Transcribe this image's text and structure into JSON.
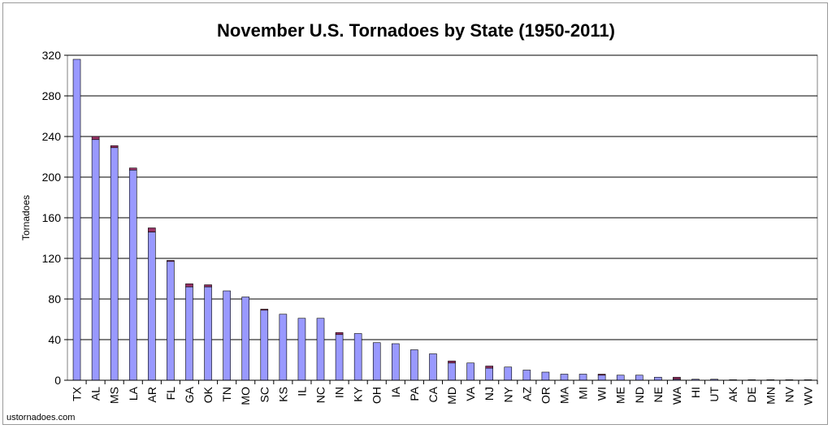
{
  "chart_data": {
    "type": "bar",
    "title": "November U.S. Tornadoes by State (1950-2011)",
    "xlabel": "",
    "ylabel": "Tornadoes",
    "ylim": [
      0,
      320
    ],
    "yticks": [
      0,
      40,
      80,
      120,
      160,
      200,
      240,
      280,
      320
    ],
    "grid": true,
    "legend": "none",
    "stacked": true,
    "categories": [
      "TX",
      "AL",
      "MS",
      "LA",
      "AR",
      "FL",
      "GA",
      "OK",
      "TN",
      "MO",
      "SC",
      "KS",
      "IL",
      "NC",
      "IN",
      "KY",
      "OH",
      "IA",
      "PA",
      "CA",
      "MD",
      "VA",
      "NJ",
      "NY",
      "AZ",
      "OR",
      "MA",
      "MI",
      "WI",
      "ME",
      "ND",
      "NE",
      "WA",
      "HI",
      "UT",
      "AK",
      "DE",
      "MN",
      "NV",
      "WV"
    ],
    "series": [
      {
        "color": "#9999ff",
        "values": [
          316,
          237,
          229,
          207,
          146,
          117,
          92,
          92,
          88,
          82,
          69,
          65,
          61,
          61,
          45,
          46,
          37,
          36,
          30,
          26,
          17,
          17,
          12,
          13,
          10,
          8,
          6,
          6,
          5,
          5,
          5,
          3,
          1,
          1,
          1,
          0.5,
          0.5,
          0.5,
          0.5,
          0.5
        ]
      },
      {
        "color": "#993366",
        "values": [
          0,
          3,
          2,
          2,
          4,
          1,
          3,
          2,
          0,
          0,
          1,
          0,
          0,
          0,
          2,
          0,
          0,
          0,
          0,
          0,
          2,
          0,
          2,
          0,
          0,
          0,
          0,
          0,
          1,
          0,
          0,
          0,
          2,
          0,
          0,
          0,
          0,
          0,
          0,
          0
        ]
      }
    ]
  },
  "credit": "ustornadoes.com"
}
